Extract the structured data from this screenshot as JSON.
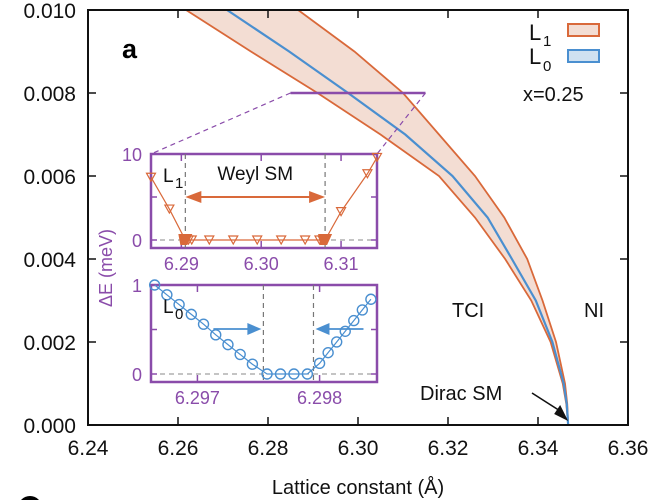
{
  "chart_data": {
    "type": "area",
    "panel_label": "a",
    "title": "",
    "xlabel": "Lattice constant (Å)",
    "ylabel": "",
    "xlim": [
      6.24,
      6.36
    ],
    "ylim": [
      0.0,
      0.01
    ],
    "xticks": [
      6.24,
      6.26,
      6.28,
      6.3,
      6.32,
      6.34,
      6.36
    ],
    "xtick_labels": [
      "6.24",
      "6.26",
      "6.28",
      "6.30",
      "6.32",
      "6.34",
      "6.36"
    ],
    "yticks": [
      0.0,
      0.002,
      0.004,
      0.006,
      0.008,
      0.01
    ],
    "ytick_labels": [
      "0.000",
      "0.002",
      "0.004",
      "0.006",
      "0.008",
      "0.010"
    ],
    "grid": false,
    "legend": {
      "placement": "top-right",
      "entries": [
        {
          "label": "L",
          "sub": "1",
          "color": "#d9693a",
          "fill": "#f3ddd3"
        },
        {
          "label": "L",
          "sub": "0",
          "color": "#4a8fd0",
          "fill": "#cfe1f1"
        }
      ]
    },
    "composition_label": "x=0.25",
    "region_labels": [
      "TCI",
      "NI"
    ],
    "arrow_annotation": {
      "text": "Dirac SM",
      "points_to": [
        6.3467,
        0.0
      ]
    },
    "series": [
      {
        "name": "L1 band",
        "color": "#d9693a",
        "fill": "#f3ddd3",
        "y": [
          0.01,
          0.009,
          0.008,
          0.007,
          0.006,
          0.005,
          0.004,
          0.003,
          0.002,
          0.001,
          0.0005,
          0.0
        ],
        "x_lower": [
          6.2618,
          6.2762,
          6.291,
          6.305,
          6.318,
          6.326,
          6.3327,
          6.3385,
          6.3428,
          6.3455,
          6.3463,
          6.3467
        ],
        "x_upper": [
          6.2867,
          6.2992,
          6.31,
          6.318,
          6.326,
          6.3325,
          6.3376,
          6.341,
          6.344,
          6.346,
          6.3465,
          6.3467
        ]
      },
      {
        "name": "L0",
        "color": "#4a8fd0",
        "y": [
          0.01,
          0.009,
          0.008,
          0.007,
          0.006,
          0.005,
          0.004,
          0.003,
          0.002,
          0.001,
          0.0005,
          0.0
        ],
        "x": [
          6.2709,
          6.2847,
          6.2978,
          6.3105,
          6.321,
          6.3288,
          6.3342,
          6.3395,
          6.3432,
          6.3457,
          6.3464,
          6.3467
        ]
      }
    ],
    "zoom_marker": {
      "x_range": [
        6.285,
        6.315
      ],
      "y": 0.008,
      "color": "#8a4caa"
    },
    "inset": {
      "ylabel": "ΔE (meV)",
      "color": "#8a4caa",
      "panels": [
        {
          "name": "L1 inset",
          "label": "L",
          "label_sub": "1",
          "xlim": [
            6.2862,
            6.3145
          ],
          "ylim": [
            0,
            10
          ],
          "xticks": [
            6.29,
            6.3,
            6.31
          ],
          "xtick_labels": [
            "6.29",
            "6.30",
            "6.31"
          ],
          "ytick_labels": [
            "10",
            "0"
          ],
          "annotation": "Weyl SM",
          "phase_boundaries": [
            6.2905,
            6.308
          ],
          "marker": "triangle-down",
          "marker_color": "#d9693a",
          "points_x": [
            6.2862,
            6.2885,
            6.2905,
            6.2909,
            6.2913,
            6.2935,
            6.2965,
            6.2995,
            6.3025,
            6.3055,
            6.3073,
            6.3077,
            6.308,
            6.31,
            6.3133,
            6.3145
          ],
          "points_y": [
            7.3,
            3.6,
            0.0,
            0.0,
            0.0,
            0.0,
            0.0,
            0.0,
            0.0,
            0.0,
            0.0,
            0.0,
            0.0,
            3.3,
            7.7,
            9.6
          ]
        },
        {
          "name": "L0 inset",
          "label": "L",
          "label_sub": "0",
          "xlim": [
            6.29662,
            6.29847
          ],
          "ylim": [
            0,
            1
          ],
          "xticks": [
            6.297,
            6.298
          ],
          "xtick_labels": [
            "6.297",
            "6.298"
          ],
          "ytick_labels": [
            "1",
            "0"
          ],
          "annotation": "",
          "phase_boundaries": [
            6.29754,
            6.29795
          ],
          "marker": "circle",
          "marker_color": "#4a8fd0",
          "points_x": [
            6.29665,
            6.29675,
            6.29685,
            6.29695,
            6.29705,
            6.29715,
            6.29725,
            6.29735,
            6.29745,
            6.29757,
            6.29768,
            6.29779,
            6.2979,
            6.298,
            6.29807,
            6.29814,
            6.29821,
            6.29828,
            6.29835,
            6.29842
          ],
          "points_y": [
            1.0,
            0.89,
            0.78,
            0.67,
            0.56,
            0.44,
            0.33,
            0.22,
            0.11,
            0.0,
            0.0,
            0.0,
            0.0,
            0.12,
            0.24,
            0.36,
            0.48,
            0.6,
            0.72,
            0.84
          ]
        }
      ]
    }
  }
}
